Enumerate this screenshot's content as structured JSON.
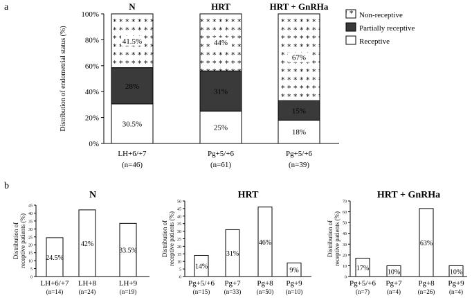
{
  "figure": {
    "panel_a_label": "a",
    "panel_b_label": "b"
  },
  "colors": {
    "receptive": "#ffffff",
    "partially": "#3a3a3a",
    "nonreceptive": "#ffffff",
    "stroke": "#000000"
  },
  "chart_data": [
    {
      "type": "bar",
      "stacked": true,
      "ylabel": "Distribution of endometrial status (%)",
      "ylim": [
        0,
        100
      ],
      "yticks": [
        "0%",
        "20%",
        "40%",
        "60%",
        "80%",
        "100%"
      ],
      "groups": [
        "N",
        "HRT",
        "HRT + GnRHa"
      ],
      "categories": [
        "LH+6/+7",
        "Pg+5/+6",
        "Pg+5/+6"
      ],
      "counts": [
        "(n=46)",
        "(n=61)",
        "(n=39)"
      ],
      "legend": [
        "Non-receptive",
        "Partially receptive",
        "Receptive"
      ],
      "legend_position": "top-right",
      "series": [
        {
          "name": "Receptive",
          "values": [
            30.5,
            25,
            18
          ],
          "labels": [
            "30.5%",
            "25%",
            "18%"
          ]
        },
        {
          "name": "Partially receptive",
          "values": [
            28,
            31,
            15
          ],
          "labels": [
            "28%",
            "31%",
            "15%"
          ]
        },
        {
          "name": "Non-receptive",
          "values": [
            41.5,
            44,
            67
          ],
          "labels": [
            "41.5%",
            "44%",
            "67%"
          ]
        }
      ]
    },
    {
      "type": "bar",
      "title": "N",
      "ylabel": "Distribution of receptive patients (%)",
      "ylim": [
        0,
        45
      ],
      "yticks": [
        "0",
        "5",
        "10",
        "15",
        "20",
        "25",
        "30",
        "35",
        "40",
        "45"
      ],
      "categories": [
        "LH+6/+7",
        "LH+8",
        "LH+9"
      ],
      "counts": [
        "(n=14)",
        "(n=24)",
        "(n=19)"
      ],
      "values": [
        24.5,
        42,
        33.5
      ],
      "labels": [
        "24.5%",
        "42%",
        "33.5%"
      ]
    },
    {
      "type": "bar",
      "title": "HRT",
      "ylabel": "Distribution of receptive patients (%)",
      "ylim": [
        0,
        50
      ],
      "yticks": [
        "0",
        "5",
        "10",
        "15",
        "20",
        "25",
        "30",
        "35",
        "40",
        "45",
        "50"
      ],
      "categories": [
        "Pg+5/+6",
        "Pg+7",
        "Pg+8",
        "Pg+9"
      ],
      "counts": [
        "(n=15)",
        "(n=33)",
        "(n=50)",
        "(n=10)"
      ],
      "values": [
        14,
        31,
        46,
        9
      ],
      "labels": [
        "14%",
        "31%",
        "46%",
        "9%"
      ]
    },
    {
      "type": "bar",
      "title": "HRT + GnRHa",
      "ylabel": "Distribution of receptive patients (%)",
      "ylim": [
        0,
        70
      ],
      "yticks": [
        "0",
        "10",
        "20",
        "30",
        "40",
        "50",
        "60",
        "70"
      ],
      "categories": [
        "Pg+5/+6",
        "Pg+7",
        "Pg+8",
        "Pg+9"
      ],
      "counts": [
        "(n=7)",
        "(n=4)",
        "(n=26)",
        "(n=4)"
      ],
      "values": [
        17,
        10,
        63,
        10
      ],
      "labels": [
        "17%",
        "10%",
        "63%",
        "10%"
      ]
    }
  ]
}
